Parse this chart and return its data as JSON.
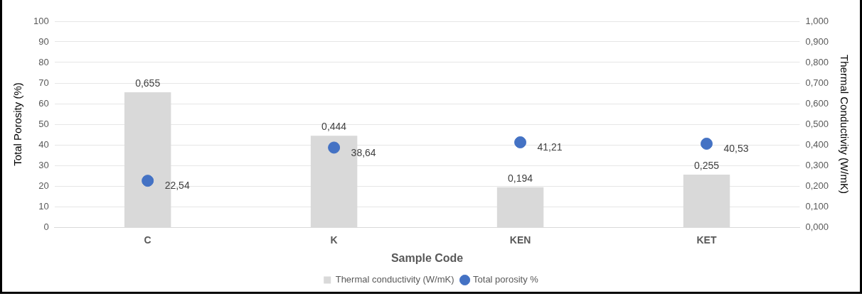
{
  "chart_data": {
    "type": "bar",
    "xlabel": "Sample Code",
    "ylabel": "Total Porosity (%)",
    "y2label": "Thermal Conductivity (W/mK)",
    "categories": [
      "C",
      "K",
      "KEN",
      "KET"
    ],
    "series": [
      {
        "name": "Thermal conductivity (W/mK)",
        "axis": "y2",
        "color": "#d9d9d9",
        "values": [
          0.655,
          0.444,
          0.194,
          0.255
        ],
        "value_labels": [
          "0,655",
          "0,444",
          "0,194",
          "0,255"
        ]
      },
      {
        "name": "Total porosity %",
        "type": "scatter",
        "axis": "y",
        "color": "#4472c4",
        "values": [
          22.54,
          38.64,
          41.21,
          40.53
        ],
        "value_labels": [
          "22,54",
          "38,64",
          "41,21",
          "40,53"
        ]
      }
    ],
    "ylim": [
      0,
      100
    ],
    "yticks": [
      0,
      10,
      20,
      30,
      40,
      50,
      60,
      70,
      80,
      90,
      100
    ],
    "y2lim": [
      0,
      1
    ],
    "y2ticks": [
      {
        "value": 0,
        "label": "0,000"
      },
      {
        "value": 0.1,
        "label": "0,100"
      },
      {
        "value": 0.2,
        "label": "0,200"
      },
      {
        "value": 0.3,
        "label": "0,300"
      },
      {
        "value": 0.4,
        "label": "0,400"
      },
      {
        "value": 0.5,
        "label": "0,500"
      },
      {
        "value": 0.6,
        "label": "0,600"
      },
      {
        "value": 0.7,
        "label": "0,700"
      },
      {
        "value": 0.8,
        "label": "0,800"
      },
      {
        "value": 0.9,
        "label": "0,900"
      },
      {
        "value": 1,
        "label": "1,000"
      }
    ],
    "grid": "y",
    "legend": "bottom",
    "marker": "circle"
  }
}
